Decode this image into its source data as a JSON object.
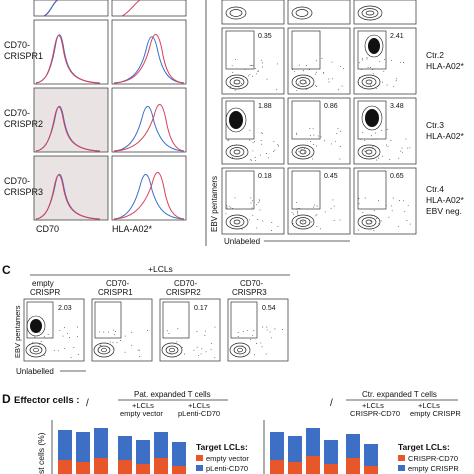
{
  "panelA": {
    "row_labels": [
      {
        "line1": "CD70-",
        "line2": "CRISPR1"
      },
      {
        "line1": "CD70-",
        "line2": "CRISPR2"
      },
      {
        "line1": "CD70-",
        "line2": "CRISPR3"
      }
    ],
    "x_axis_labels": [
      "CD70",
      "HLA-A02*"
    ]
  },
  "panelB": {
    "y_axis_label": "EBV pentamers",
    "x_axis_label": "Unlabeled",
    "row_labels": [
      {
        "lines": [
          "Ctr.2",
          "HLA-A02*"
        ]
      },
      {
        "lines": [
          "Ctr.3",
          "HLA-A02*"
        ]
      },
      {
        "lines": [
          "Ctr.4",
          "HLA-A02*",
          "EBV neg."
        ]
      }
    ],
    "gate_values": [
      [
        "0.35",
        "",
        "2.41"
      ],
      [
        "1.88",
        "0.86",
        "3.48"
      ],
      [
        "0.18",
        "0.45",
        "0.65"
      ]
    ]
  },
  "panelC": {
    "letter": "C",
    "condition_label": "+LCLs",
    "columns": [
      {
        "line1": "empty",
        "line2": "CRISPR",
        "value": "2.03"
      },
      {
        "line1": "CD70-",
        "line2": "CRISPR1",
        "value": ""
      },
      {
        "line1": "CD70-",
        "line2": "CRISPR2",
        "value": "0.17"
      },
      {
        "line1": "CD70-",
        "line2": "CRISPR3",
        "value": "0.54"
      }
    ],
    "y_axis_label": "EBV pentamers",
    "x_axis_label": "Unlabelled"
  },
  "panelD": {
    "letter": "D",
    "effector_label": "Effector cells :",
    "slash": "/",
    "group1": {
      "title": "Pat. expanded T cells",
      "sub1": {
        "line1": "+LCLs",
        "line2": "empty vector"
      },
      "sub2": {
        "line1": "+LCLs",
        "line2": "pLenti-CD70"
      }
    },
    "group2": {
      "title": "Ctr. expanded T cells",
      "sub1": {
        "line1": "+LCLs",
        "line2": "CRISPR-CD70"
      },
      "sub2": {
        "line1": "+LCLs",
        "line2": "empty CRISPR"
      }
    },
    "y_axis_label": "st cells (%)",
    "legend1": {
      "title": "Target LCLs:",
      "items": [
        "empty vector",
        "pLenti-CD70"
      ]
    },
    "legend2": {
      "title": "Target LCLs:",
      "items": [
        "CRISPR-CD70",
        "empty CRISPR"
      ]
    },
    "colors": {
      "orange": "#e8572a",
      "blue": "#3d6fc4"
    }
  }
}
